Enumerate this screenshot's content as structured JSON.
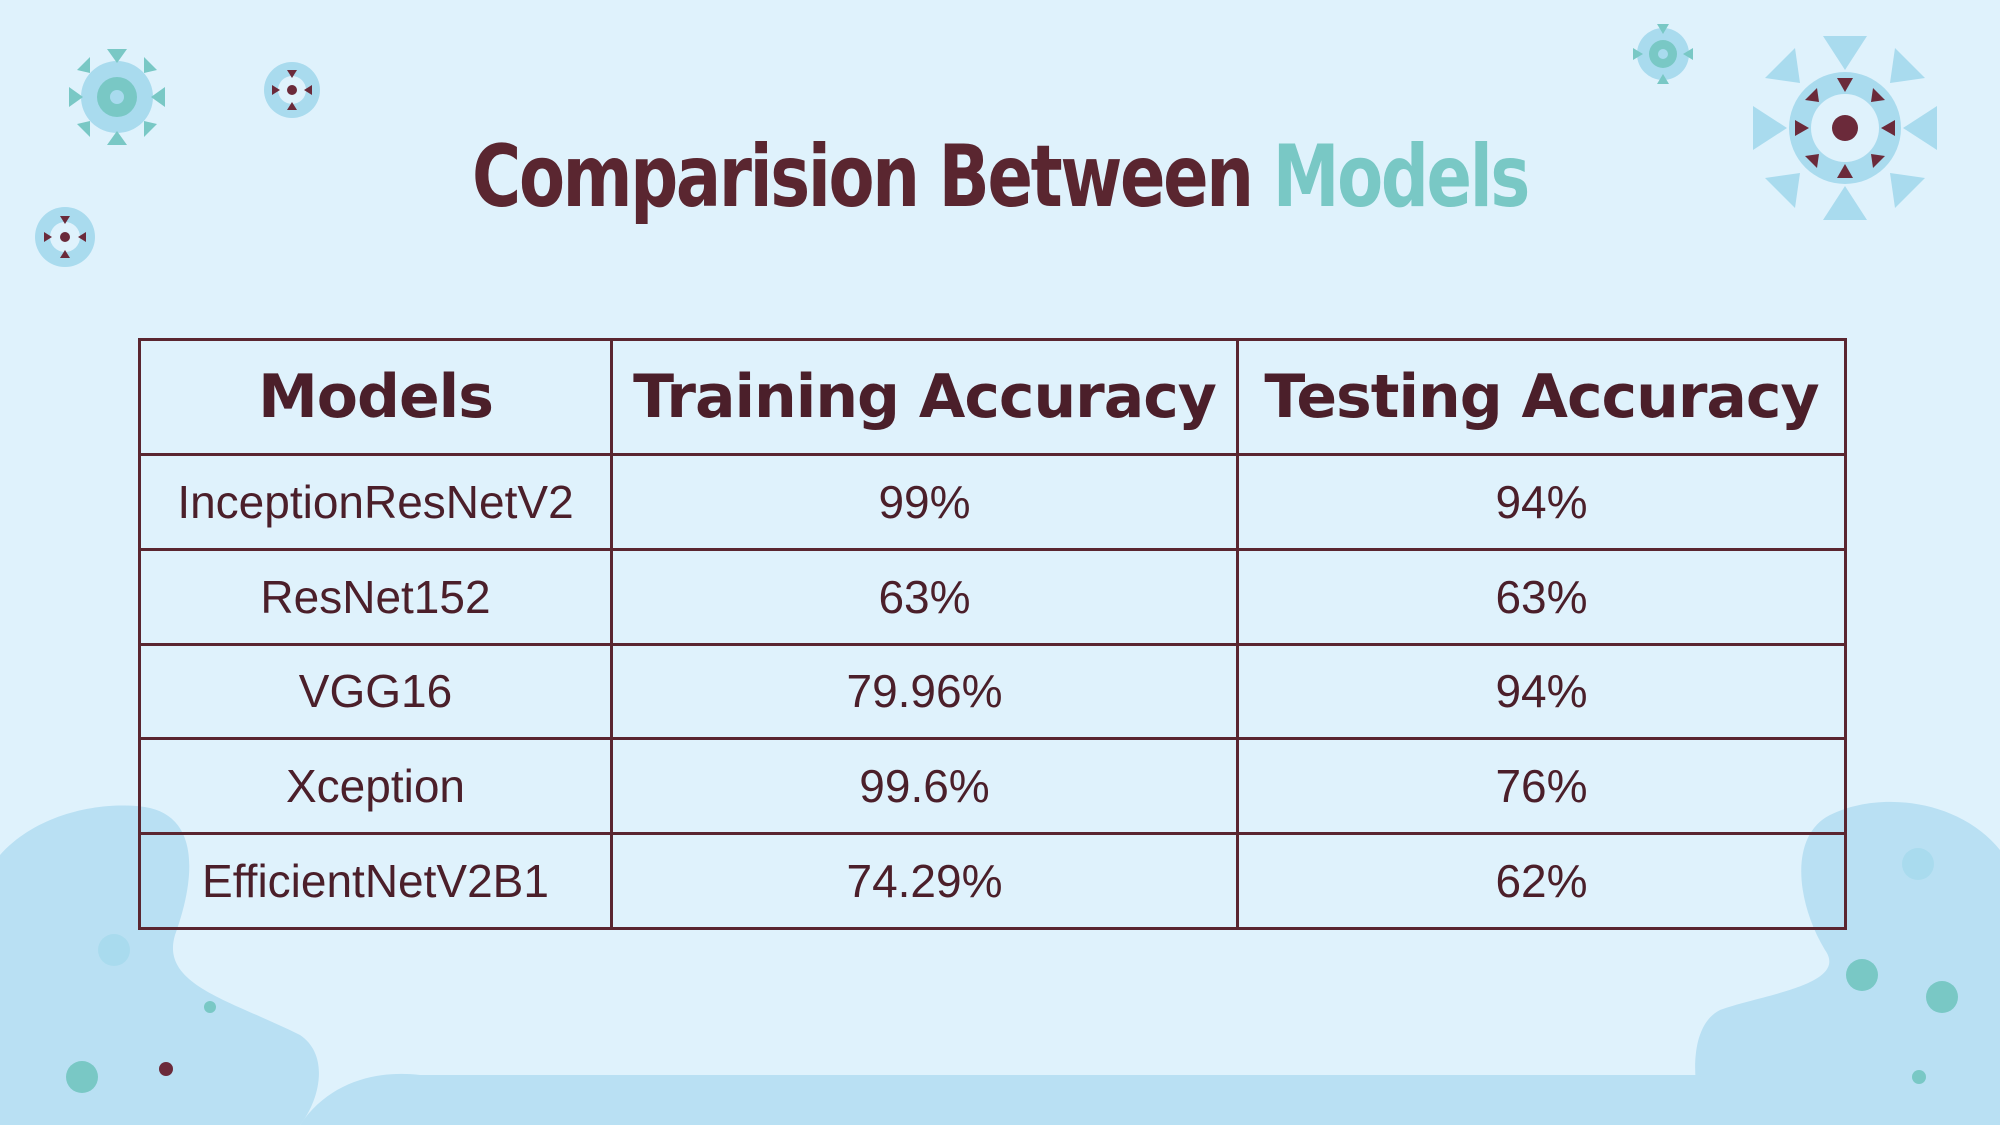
{
  "slide": {
    "title_part1": "Comparision Between",
    "title_part2": "Models",
    "colors": {
      "background": "#dff2fc",
      "title_dark": "#5a2630",
      "title_accent": "#79c8c5",
      "table_text": "#4b1f2a",
      "blob": "#b9e0f3",
      "virus_teal": "#79c8c5",
      "virus_light": "#a9dbee",
      "virus_dark": "#6b2a3a"
    }
  },
  "table": {
    "headers": [
      "Models",
      "Training Accuracy",
      "Testing Accuracy"
    ],
    "rows": [
      [
        "InceptionResNetV2",
        "99%",
        "94%"
      ],
      [
        "ResNet152",
        "63%",
        "63%"
      ],
      [
        "VGG16",
        "79.96%",
        "94%"
      ],
      [
        "Xception",
        "99.6%",
        "76%"
      ],
      [
        "EfficientNetV2B1",
        "74.29%",
        "62%"
      ]
    ]
  }
}
